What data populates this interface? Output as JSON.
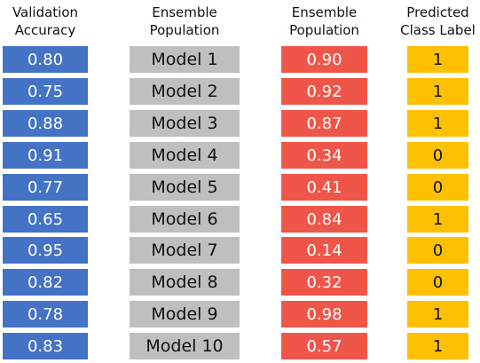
{
  "headers": {
    "accuracy": [
      "Validation",
      "Accuracy"
    ],
    "models": [
      "Ensemble",
      "Population"
    ],
    "population": [
      "Ensemble",
      "Population"
    ],
    "label": [
      "Predicted",
      "Class Label"
    ]
  },
  "rows": [
    {
      "accuracy": "0.80",
      "model": "Model 1",
      "population": "0.90",
      "label": "1"
    },
    {
      "accuracy": "0.75",
      "model": "Model 2",
      "population": "0.92",
      "label": "1"
    },
    {
      "accuracy": "0.88",
      "model": "Model 3",
      "population": "0.87",
      "label": "1"
    },
    {
      "accuracy": "0.91",
      "model": "Model 4",
      "population": "0.34",
      "label": "0"
    },
    {
      "accuracy": "0.77",
      "model": "Model 5",
      "population": "0.41",
      "label": "0"
    },
    {
      "accuracy": "0.65",
      "model": "Model 6",
      "population": "0.84",
      "label": "1"
    },
    {
      "accuracy": "0.95",
      "model": "Model 7",
      "population": "0.14",
      "label": "0"
    },
    {
      "accuracy": "0.82",
      "model": "Model 8",
      "population": "0.32",
      "label": "0"
    },
    {
      "accuracy": "0.78",
      "model": "Model 9",
      "population": "0.98",
      "label": "1"
    },
    {
      "accuracy": "0.83",
      "model": "Model 10",
      "population": "0.57",
      "label": "1"
    }
  ],
  "colors": {
    "accuracy": "#4472c4",
    "model": "#bfbfbf",
    "population": "#f0554a",
    "label": "#ffc000"
  }
}
